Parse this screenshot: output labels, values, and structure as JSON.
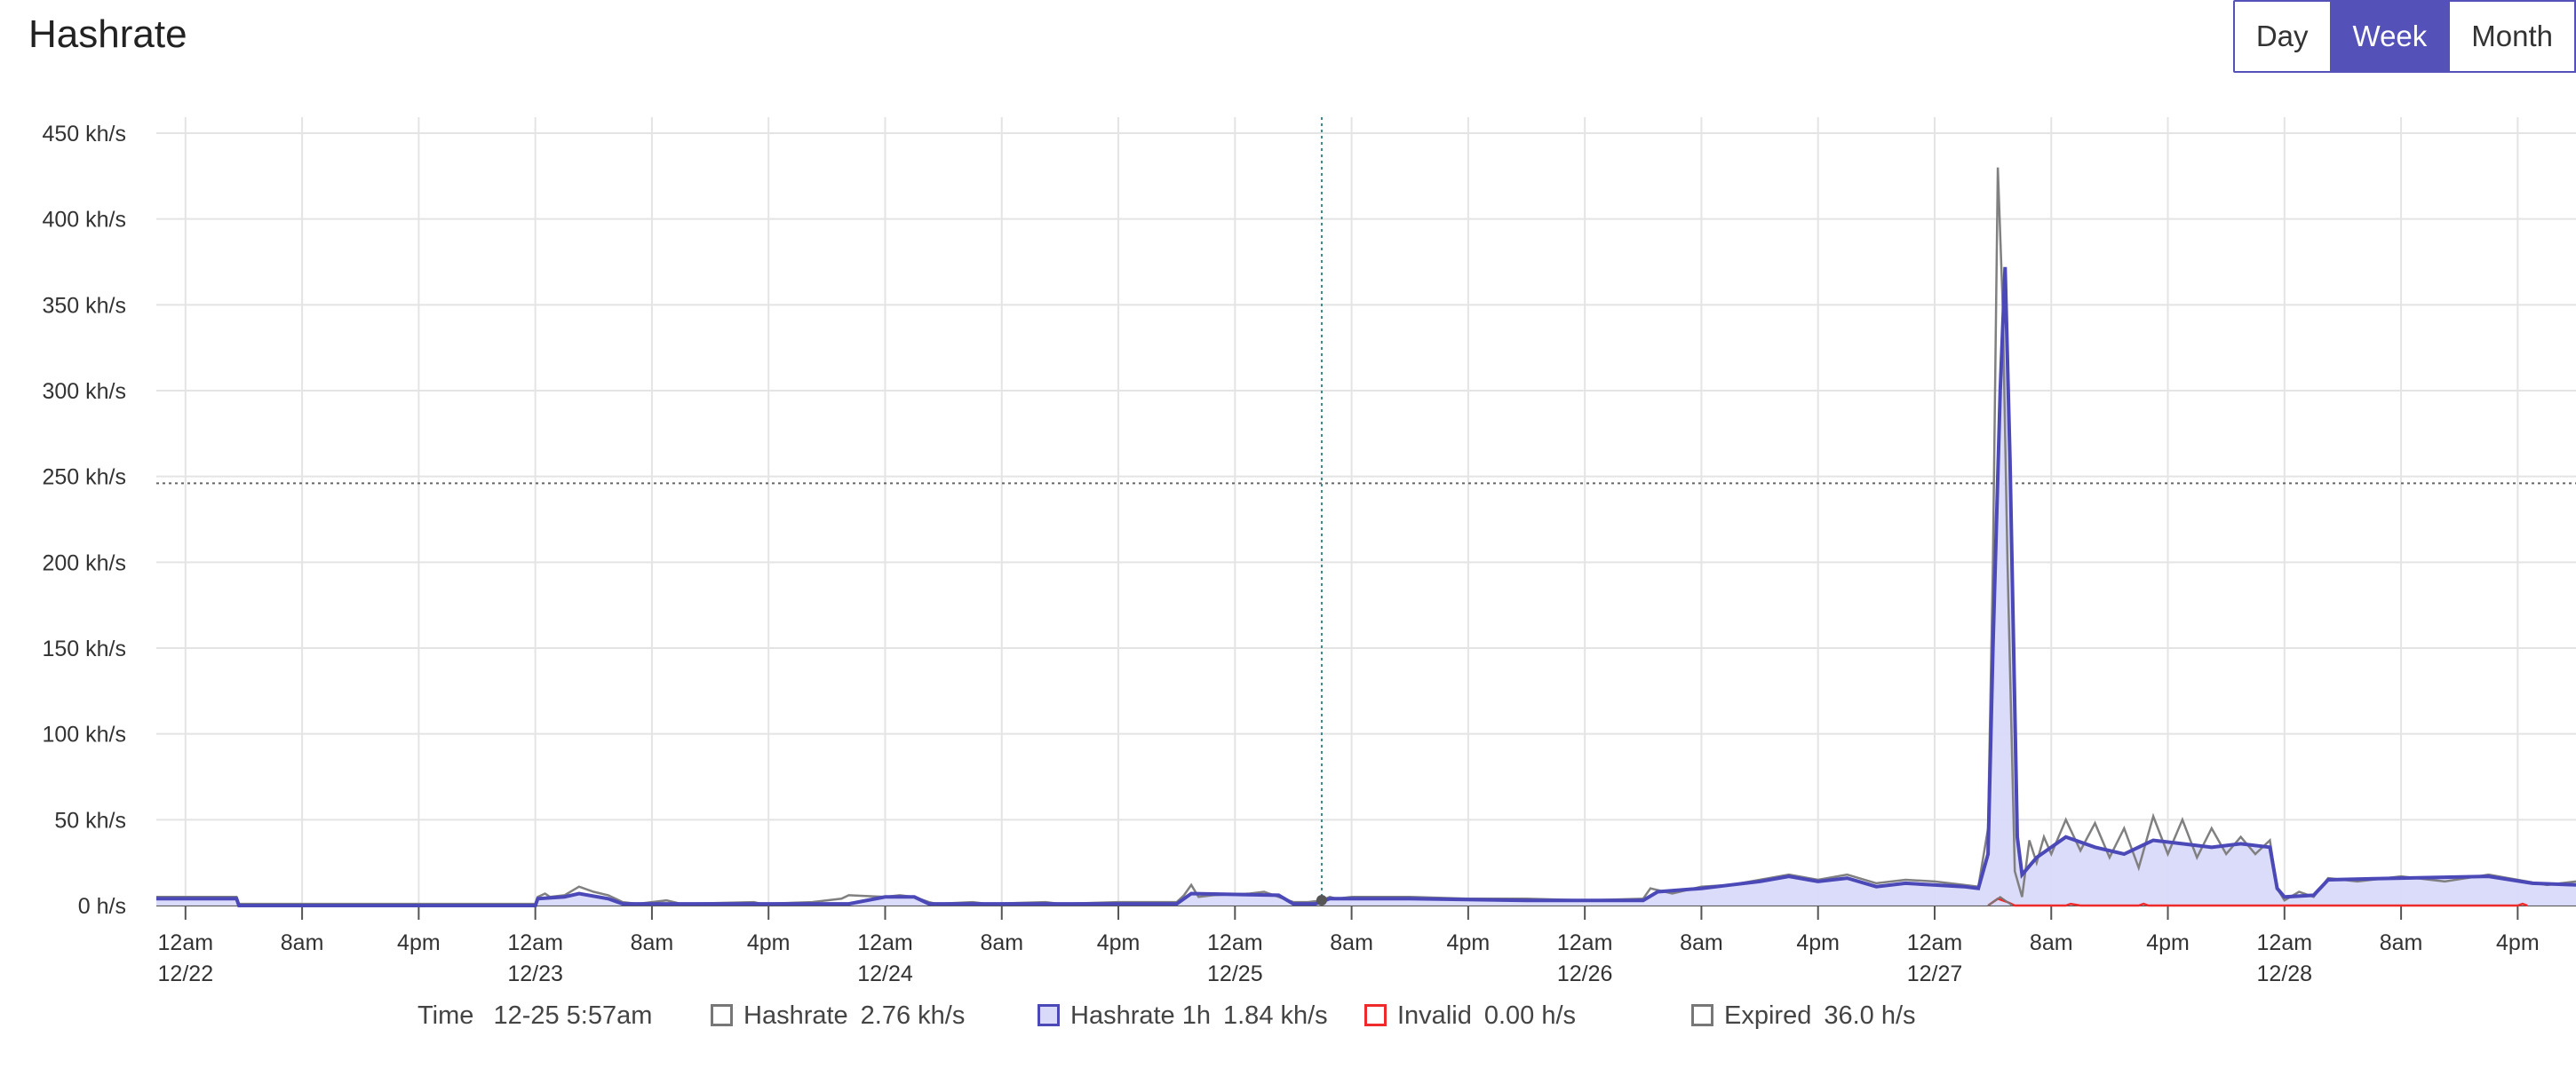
{
  "header": {
    "title": "Hashrate"
  },
  "range_buttons": [
    {
      "label": "Day",
      "active": false
    },
    {
      "label": "Week",
      "active": true
    },
    {
      "label": "Month",
      "active": false
    }
  ],
  "legend": {
    "time_label": "Time",
    "time_value": "12-25 5:57am",
    "items": [
      {
        "label": "Hashrate",
        "value": "2.76 kh/s"
      },
      {
        "label": "Hashrate 1h",
        "value": "1.84 kh/s"
      },
      {
        "label": "Invalid",
        "value": "0.00 h/s"
      },
      {
        "label": "Expired",
        "value": "36.0 h/s"
      }
    ]
  },
  "colors": {
    "hashrate": "#808080",
    "hashrate_1h_line": "#4b48b8",
    "hashrate_1h_fill": "#d9d9fa",
    "invalid": "#ee2a2a",
    "expired": "#777777",
    "grid": "#e4e4e4",
    "accent": "#5451b9"
  },
  "chart_data": {
    "type": "area",
    "ylabel": "",
    "xlabel": "",
    "ylim": [
      0,
      450
    ],
    "yticks": [
      {
        "v": 0,
        "label": "0  h/s"
      },
      {
        "v": 50,
        "label": "50 kh/s"
      },
      {
        "v": 100,
        "label": "100 kh/s"
      },
      {
        "v": 150,
        "label": "150 kh/s"
      },
      {
        "v": 200,
        "label": "200 kh/s"
      },
      {
        "v": 250,
        "label": "250 kh/s"
      },
      {
        "v": 300,
        "label": "300 kh/s"
      },
      {
        "v": 350,
        "label": "350 kh/s"
      },
      {
        "v": 400,
        "label": "400 kh/s"
      },
      {
        "v": 450,
        "label": "450 kh/s"
      }
    ],
    "xlim": [
      "12-21 10:00pm",
      "12-28 8:00pm"
    ],
    "xticks": [
      {
        "t": "12-22 12:00am",
        "l1": "12am",
        "l2": "12/22"
      },
      {
        "t": "12-22 8:00am",
        "l1": "8am",
        "l2": ""
      },
      {
        "t": "12-22 4:00pm",
        "l1": "4pm",
        "l2": ""
      },
      {
        "t": "12-23 12:00am",
        "l1": "12am",
        "l2": "12/23"
      },
      {
        "t": "12-23 8:00am",
        "l1": "8am",
        "l2": ""
      },
      {
        "t": "12-23 4:00pm",
        "l1": "4pm",
        "l2": ""
      },
      {
        "t": "12-24 12:00am",
        "l1": "12am",
        "l2": "12/24"
      },
      {
        "t": "12-24 8:00am",
        "l1": "8am",
        "l2": ""
      },
      {
        "t": "12-24 4:00pm",
        "l1": "4pm",
        "l2": ""
      },
      {
        "t": "12-25 12:00am",
        "l1": "12am",
        "l2": "12/25"
      },
      {
        "t": "12-25 8:00am",
        "l1": "8am",
        "l2": ""
      },
      {
        "t": "12-25 4:00pm",
        "l1": "4pm",
        "l2": ""
      },
      {
        "t": "12-26 12:00am",
        "l1": "12am",
        "l2": "12/26"
      },
      {
        "t": "12-26 8:00am",
        "l1": "8am",
        "l2": ""
      },
      {
        "t": "12-26 4:00pm",
        "l1": "4pm",
        "l2": ""
      },
      {
        "t": "12-27 12:00am",
        "l1": "12am",
        "l2": "12/27"
      },
      {
        "t": "12-27 8:00am",
        "l1": "8am",
        "l2": ""
      },
      {
        "t": "12-27 4:00pm",
        "l1": "4pm",
        "l2": ""
      },
      {
        "t": "12-28 12:00am",
        "l1": "12am",
        "l2": "12/28"
      },
      {
        "t": "12-28 8:00am",
        "l1": "8am",
        "l2": ""
      },
      {
        "t": "12-28 4:00pm",
        "l1": "4pm",
        "l2": ""
      }
    ],
    "grid": true,
    "average_line_value": 246,
    "cursor_time": "12-25 5:57am",
    "series": [
      {
        "name": "Hashrate",
        "style": "line",
        "points": [
          [
            "12-21 10:00pm",
            5
          ],
          [
            "12-22 3:30am",
            5
          ],
          [
            "12-22 3:40am",
            1
          ],
          [
            "12-23 12:00am",
            1
          ],
          [
            "12-23 12:10am",
            5
          ],
          [
            "12-23 12:40am",
            7
          ],
          [
            "12-23 1:00am",
            5
          ],
          [
            "12-23 2:00am",
            6
          ],
          [
            "12-23 3:00am",
            11
          ],
          [
            "12-23 4:00am",
            8
          ],
          [
            "12-23 5:00am",
            6
          ],
          [
            "12-23 5:30am",
            4
          ],
          [
            "12-23 6:00am",
            2
          ],
          [
            "12-23 7:00am",
            1
          ],
          [
            "12-23 9:00am",
            3
          ],
          [
            "12-23 10:00am",
            1
          ],
          [
            "12-23 3:00pm",
            2
          ],
          [
            "12-23 3:30pm",
            1
          ],
          [
            "12-23 7:00pm",
            2
          ],
          [
            "12-23 9:00pm",
            4
          ],
          [
            "12-23 9:30pm",
            6
          ],
          [
            "12-24 12:00am",
            5
          ],
          [
            "12-24 1:00am",
            6
          ],
          [
            "12-24 2:00am",
            5
          ],
          [
            "12-24 3:00am",
            2
          ],
          [
            "12-24 3:30am",
            1
          ],
          [
            "12-24 6:00am",
            2
          ],
          [
            "12-24 7:00am",
            1
          ],
          [
            "12-24 11:00am",
            2
          ],
          [
            "12-24 12:00pm",
            1
          ],
          [
            "12-24 4:00pm",
            2
          ],
          [
            "12-24 8:00pm",
            2
          ],
          [
            "12-24 8:30pm",
            6
          ],
          [
            "12-24 9:00pm",
            12
          ],
          [
            "12-24 9:30pm",
            5
          ],
          [
            "12-24 10:30pm",
            6
          ],
          [
            "12-25 1:00am",
            7
          ],
          [
            "12-25 2:00am",
            8
          ],
          [
            "12-25 3:00am",
            5
          ],
          [
            "12-25 4:00am",
            2
          ],
          [
            "12-25 5:00am",
            2
          ],
          [
            "12-25 5:57am",
            3
          ],
          [
            "12-25 6:30am",
            5
          ],
          [
            "12-25 7:00am",
            4
          ],
          [
            "12-25 8:00am",
            5
          ],
          [
            "12-25 12:00pm",
            5
          ],
          [
            "12-25 4:00pm",
            4
          ],
          [
            "12-25 8:00pm",
            4
          ],
          [
            "12-26 12:00am",
            3
          ],
          [
            "12-26 4:00am",
            4
          ],
          [
            "12-26 4:30am",
            10
          ],
          [
            "12-26 6:00am",
            7
          ],
          [
            "12-26 8:00am",
            11
          ],
          [
            "12-26 10:00am",
            12
          ],
          [
            "12-26 12:00pm",
            15
          ],
          [
            "12-26 2:00pm",
            18
          ],
          [
            "12-26 4:00pm",
            15
          ],
          [
            "12-26 6:00pm",
            18
          ],
          [
            "12-26 8:00pm",
            13
          ],
          [
            "12-26 10:00pm",
            15
          ],
          [
            "12-27 12:00am",
            14
          ],
          [
            "12-27 2:00am",
            12
          ],
          [
            "12-27 3:00am",
            11
          ],
          [
            "12-27 3:40am",
            45
          ],
          [
            "12-27 4:00am",
            200
          ],
          [
            "12-27 4:20am",
            430
          ],
          [
            "12-27 4:40am",
            350
          ],
          [
            "12-27 5:00am",
            200
          ],
          [
            "12-27 5:30am",
            20
          ],
          [
            "12-27 6:00am",
            5
          ],
          [
            "12-27 6:30am",
            38
          ],
          [
            "12-27 7:00am",
            25
          ],
          [
            "12-27 7:30am",
            40
          ],
          [
            "12-27 8:00am",
            30
          ],
          [
            "12-27 9:00am",
            50
          ],
          [
            "12-27 10:00am",
            32
          ],
          [
            "12-27 11:00am",
            48
          ],
          [
            "12-27 12:00pm",
            28
          ],
          [
            "12-27 1:00pm",
            45
          ],
          [
            "12-27 2:00pm",
            22
          ],
          [
            "12-27 3:00pm",
            52
          ],
          [
            "12-27 4:00pm",
            30
          ],
          [
            "12-27 5:00pm",
            50
          ],
          [
            "12-27 6:00pm",
            28
          ],
          [
            "12-27 7:00pm",
            45
          ],
          [
            "12-27 8:00pm",
            30
          ],
          [
            "12-27 9:00pm",
            40
          ],
          [
            "12-27 10:00pm",
            30
          ],
          [
            "12-27 11:00pm",
            38
          ],
          [
            "12-27 11:30pm",
            10
          ],
          [
            "12-28 12:00am",
            3
          ],
          [
            "12-28 1:00am",
            8
          ],
          [
            "12-28 2:00am",
            5
          ],
          [
            "12-28 3:00am",
            16
          ],
          [
            "12-28 5:00am",
            14
          ],
          [
            "12-28 8:00am",
            17
          ],
          [
            "12-28 11:00am",
            14
          ],
          [
            "12-28 2:00pm",
            18
          ],
          [
            "12-28 4:00pm",
            15
          ],
          [
            "12-28 6:00pm",
            12
          ],
          [
            "12-28 8:00pm",
            14
          ]
        ]
      },
      {
        "name": "Hashrate 1h",
        "style": "area",
        "points": [
          [
            "12-21 10:00pm",
            4
          ],
          [
            "12-22 3:30am",
            4
          ],
          [
            "12-22 3:40am",
            0
          ],
          [
            "12-23 12:00am",
            0
          ],
          [
            "12-23 12:10am",
            4
          ],
          [
            "12-23 2:00am",
            5
          ],
          [
            "12-23 3:00am",
            7
          ],
          [
            "12-23 5:00am",
            4
          ],
          [
            "12-23 6:00am",
            1
          ],
          [
            "12-23 9:00am",
            1
          ],
          [
            "12-23 9:30pm",
            1
          ],
          [
            "12-24 12:00am",
            5
          ],
          [
            "12-24 2:00am",
            5
          ],
          [
            "12-24 3:00am",
            1
          ],
          [
            "12-24 8:00pm",
            1
          ],
          [
            "12-24 9:00pm",
            7
          ],
          [
            "12-25 3:00am",
            6
          ],
          [
            "12-25 4:00am",
            1
          ],
          [
            "12-25 5:30am",
            1
          ],
          [
            "12-25 6:30am",
            4
          ],
          [
            "12-25 12:00pm",
            4
          ],
          [
            "12-25 8:00pm",
            3
          ],
          [
            "12-26 4:00am",
            3
          ],
          [
            "12-26 5:00am",
            8
          ],
          [
            "12-26 8:00am",
            10
          ],
          [
            "12-26 10:00am",
            12
          ],
          [
            "12-26 12:00pm",
            14
          ],
          [
            "12-26 2:00pm",
            17
          ],
          [
            "12-26 4:00pm",
            14
          ],
          [
            "12-26 6:00pm",
            16
          ],
          [
            "12-26 8:00pm",
            11
          ],
          [
            "12-26 10:00pm",
            13
          ],
          [
            "12-27 2:00am",
            11
          ],
          [
            "12-27 3:00am",
            10
          ],
          [
            "12-27 3:40am",
            30
          ],
          [
            "12-27 4:00am",
            150
          ],
          [
            "12-27 4:30am",
            300
          ],
          [
            "12-27 4:50am",
            372
          ],
          [
            "12-27 5:10am",
            260
          ],
          [
            "12-27 5:40am",
            40
          ],
          [
            "12-27 6:00am",
            18
          ],
          [
            "12-27 7:00am",
            28
          ],
          [
            "12-27 9:00am",
            40
          ],
          [
            "12-27 11:00am",
            34
          ],
          [
            "12-27 1:00pm",
            30
          ],
          [
            "12-27 3:00pm",
            38
          ],
          [
            "12-27 5:00pm",
            36
          ],
          [
            "12-27 7:00pm",
            34
          ],
          [
            "12-27 9:00pm",
            36
          ],
          [
            "12-27 11:00pm",
            34
          ],
          [
            "12-27 11:30pm",
            10
          ],
          [
            "12-28 12:00am",
            5
          ],
          [
            "12-28 2:00am",
            6
          ],
          [
            "12-28 3:00am",
            15
          ],
          [
            "12-28 8:00am",
            16
          ],
          [
            "12-28 2:00pm",
            17
          ],
          [
            "12-28 5:00pm",
            13
          ],
          [
            "12-28 8:00pm",
            12
          ]
        ]
      },
      {
        "name": "Invalid",
        "style": "line",
        "points": [
          [
            "12-27 3:40am",
            0
          ],
          [
            "12-27 4:20am",
            4
          ],
          [
            "12-27 5:00am",
            2
          ],
          [
            "12-27 5:30am",
            0
          ],
          [
            "12-27 9:00am",
            0
          ],
          [
            "12-27 9:20am",
            1
          ],
          [
            "12-27 10:00am",
            0
          ],
          [
            "12-27 2:00pm",
            0
          ],
          [
            "12-27 2:20pm",
            1
          ],
          [
            "12-27 2:40pm",
            0
          ],
          [
            "12-28 4:00pm",
            0
          ],
          [
            "12-28 4:20pm",
            1
          ],
          [
            "12-28 4:40pm",
            0
          ]
        ]
      },
      {
        "name": "Expired",
        "style": "line",
        "points": [
          [
            "12-27 3:40am",
            0
          ],
          [
            "12-27 4:30am",
            5
          ],
          [
            "12-27 5:20am",
            0
          ]
        ]
      }
    ]
  }
}
